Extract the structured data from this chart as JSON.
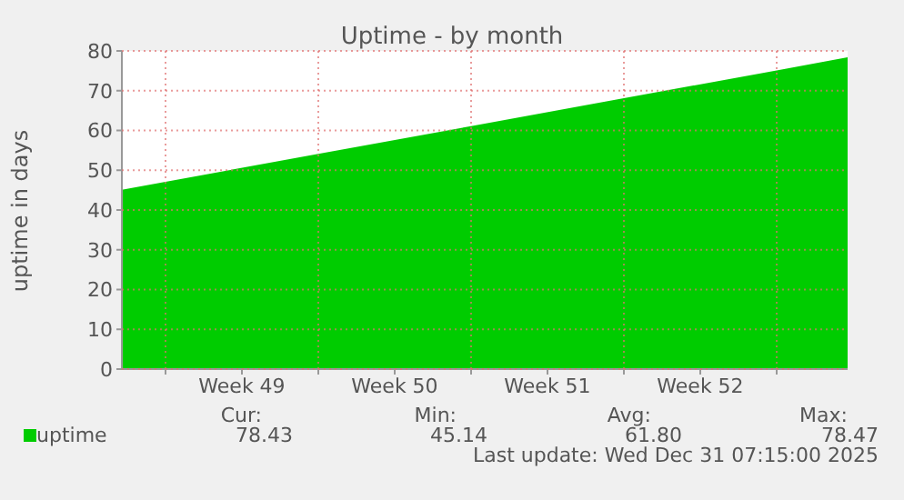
{
  "chart_data": {
    "type": "area",
    "title": "Uptime - by month",
    "ylabel": "uptime in days",
    "x": [
      "2025-11-28T00:00",
      "2025-12-07T00:00",
      "2025-12-14T00:00",
      "2025-12-21T00:00",
      "2025-12-28T00:00",
      "2025-12-31T06:00"
    ],
    "series": [
      {
        "name": "uptime",
        "color": "#00cc00",
        "values": [
          45.1,
          54.1,
          61.1,
          68.1,
          75.1,
          78.4
        ]
      }
    ],
    "xlim": [
      "2025-11-28T00:00",
      "2025-12-31T06:00"
    ],
    "xticks": [
      {
        "value": "2025-11-30T00:00",
        "label": null
      },
      {
        "value": "2025-12-03T12:00",
        "label": "Week 49"
      },
      {
        "value": "2025-12-07T00:00",
        "label": null
      },
      {
        "value": "2025-12-10T12:00",
        "label": "Week 50"
      },
      {
        "value": "2025-12-14T00:00",
        "label": null
      },
      {
        "value": "2025-12-17T12:00",
        "label": "Week 51"
      },
      {
        "value": "2025-12-21T00:00",
        "label": null
      },
      {
        "value": "2025-12-24T12:00",
        "label": "Week 52"
      },
      {
        "value": "2025-12-28T00:00",
        "label": null
      }
    ],
    "ylim": [
      0,
      80
    ],
    "yticks": [
      0,
      10,
      20,
      30,
      40,
      50,
      60,
      70,
      80
    ],
    "grid": true,
    "legend": "bottom left",
    "annotations": [
      "Cur:",
      "78.43",
      "Min:",
      "45.14",
      "Avg:",
      "61.80",
      "Max:",
      "78.47",
      "Last update: Wed Dec 31 07:15:00 2025"
    ]
  }
}
